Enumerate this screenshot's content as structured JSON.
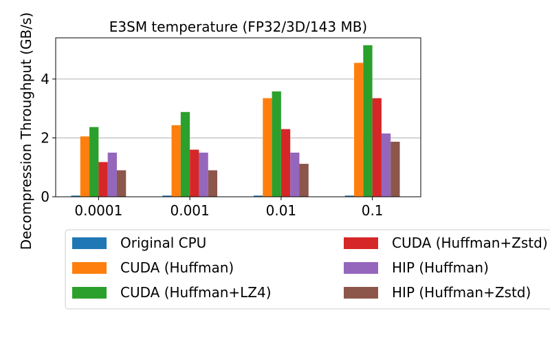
{
  "chart_data": {
    "type": "bar",
    "title": "E3SM temperature (FP32/3D/143 MB)",
    "xlabel": "",
    "ylabel": "Decompression Throughput (GB/s)",
    "categories": [
      "0.0001",
      "0.001",
      "0.01",
      "0.1"
    ],
    "ylim": [
      0,
      5.4
    ],
    "yticks": [
      0,
      2,
      4
    ],
    "grid": "horizontal",
    "legend_position": "bottom",
    "series": [
      {
        "name": "Original CPU",
        "color": "#1f77b4",
        "values": [
          0.04,
          0.04,
          0.04,
          0.04
        ]
      },
      {
        "name": "CUDA (Huffman)",
        "color": "#ff7f0e",
        "values": [
          2.05,
          2.43,
          3.35,
          4.55
        ]
      },
      {
        "name": "CUDA (Huffman+LZ4)",
        "color": "#2ca02c",
        "values": [
          2.37,
          2.88,
          3.58,
          5.15
        ]
      },
      {
        "name": "CUDA (Huffman+Zstd)",
        "color": "#d62728",
        "values": [
          1.18,
          1.6,
          2.3,
          3.35
        ]
      },
      {
        "name": "HIP (Huffman)",
        "color": "#9467bd",
        "values": [
          1.5,
          1.5,
          1.5,
          2.15
        ]
      },
      {
        "name": "HIP (Huffman+Zstd)",
        "color": "#8c564b",
        "values": [
          0.9,
          0.9,
          1.12,
          1.87
        ]
      }
    ]
  }
}
